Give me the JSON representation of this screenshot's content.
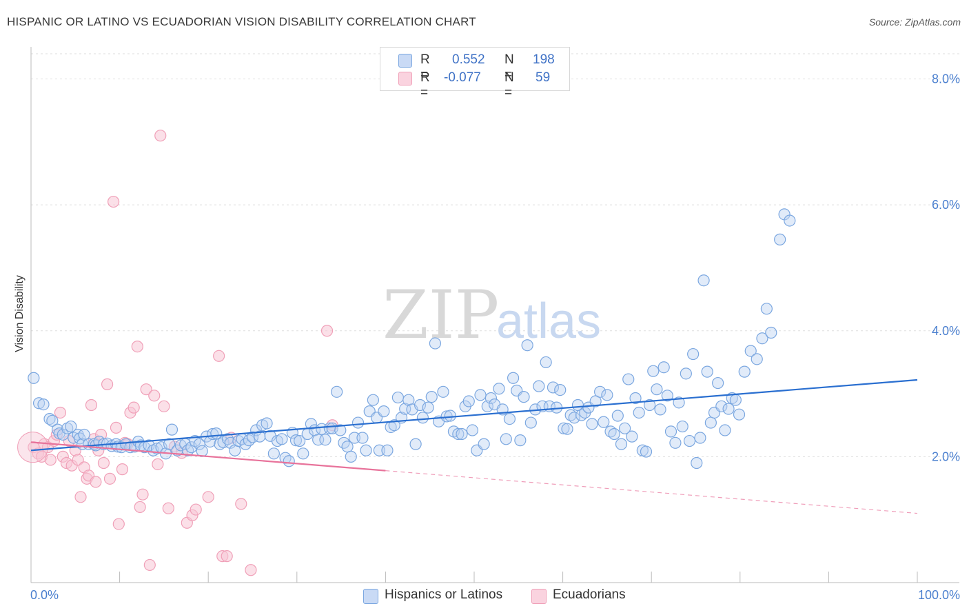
{
  "title": "HISPANIC OR LATINO VS ECUADORIAN VISION DISABILITY CORRELATION CHART",
  "source": "Source: ZipAtlas.com",
  "watermark": "ZIPatlas",
  "legend": {
    "rows": [
      {
        "r_label": "R =",
        "r_value": "0.552",
        "n_label": "N =",
        "n_value": "198",
        "color": "#7ba7e0"
      },
      {
        "r_label": "R =",
        "r_value": "-0.077",
        "n_label": "N =",
        "n_value": "59",
        "color": "#f0a0b8"
      }
    ]
  },
  "bottom_legend": [
    "Hispanics or Latinos",
    "Ecuadorians"
  ],
  "chart_data": {
    "type": "scatter",
    "title": "HISPANIC OR LATINO VS ECUADORIAN VISION DISABILITY CORRELATION CHART",
    "xlabel": "",
    "ylabel": "Vision Disability",
    "xlim": [
      0,
      100
    ],
    "ylim": [
      0,
      8.4
    ],
    "x_tick_labels": [
      "0.0%",
      "100.0%"
    ],
    "y_ticks": [
      2,
      4,
      6,
      8
    ],
    "y_tick_labels": [
      "2.0%",
      "4.0%",
      "6.0%",
      "8.0%"
    ],
    "grid": true,
    "legend_position": "top-center",
    "series": [
      {
        "name": "Hispanics or Latinos",
        "color": "#7ba7e0",
        "line_color": "#2a6fd0",
        "trend": {
          "x": [
            0,
            100
          ],
          "y": [
            2.1,
            3.22
          ]
        },
        "points": [
          [
            0.3,
            3.25
          ],
          [
            0.9,
            2.85
          ],
          [
            1.4,
            2.83
          ],
          [
            2.1,
            2.6
          ],
          [
            2.4,
            2.57
          ],
          [
            3.0,
            2.43
          ],
          [
            3.2,
            2.37
          ],
          [
            3.6,
            2.35
          ],
          [
            4.1,
            2.45
          ],
          [
            4.5,
            2.48
          ],
          [
            4.8,
            2.3
          ],
          [
            5.3,
            2.35
          ],
          [
            5.5,
            2.29
          ],
          [
            5.8,
            2.2
          ],
          [
            6.0,
            2.35
          ],
          [
            6.5,
            2.2
          ],
          [
            7.1,
            2.2
          ],
          [
            7.3,
            2.18
          ],
          [
            7.7,
            2.24
          ],
          [
            8.2,
            2.2
          ],
          [
            8.6,
            2.21
          ],
          [
            9.1,
            2.17
          ],
          [
            9.6,
            2.2
          ],
          [
            9.8,
            2.16
          ],
          [
            10.2,
            2.15
          ],
          [
            10.7,
            2.2
          ],
          [
            11.2,
            2.15
          ],
          [
            11.7,
            2.16
          ],
          [
            12.1,
            2.24
          ],
          [
            12.4,
            2.18
          ],
          [
            12.8,
            2.15
          ],
          [
            13.3,
            2.18
          ],
          [
            13.8,
            2.1
          ],
          [
            14.2,
            2.13
          ],
          [
            14.7,
            2.15
          ],
          [
            15.2,
            2.05
          ],
          [
            15.6,
            2.2
          ],
          [
            15.9,
            2.43
          ],
          [
            16.5,
            2.1
          ],
          [
            16.9,
            2.18
          ],
          [
            17.4,
            2.2
          ],
          [
            17.7,
            2.1
          ],
          [
            18.1,
            2.15
          ],
          [
            18.5,
            2.25
          ],
          [
            19.0,
            2.2
          ],
          [
            19.3,
            2.09
          ],
          [
            19.8,
            2.32
          ],
          [
            20.2,
            2.24
          ],
          [
            20.5,
            2.36
          ],
          [
            20.9,
            2.37
          ],
          [
            21.3,
            2.2
          ],
          [
            21.7,
            2.23
          ],
          [
            22.2,
            2.28
          ],
          [
            22.5,
            2.22
          ],
          [
            23.0,
            2.1
          ],
          [
            23.4,
            2.25
          ],
          [
            23.8,
            2.28
          ],
          [
            24.2,
            2.2
          ],
          [
            24.6,
            2.26
          ],
          [
            25.0,
            2.31
          ],
          [
            25.4,
            2.42
          ],
          [
            25.8,
            2.32
          ],
          [
            26.1,
            2.5
          ],
          [
            26.6,
            2.53
          ],
          [
            27.0,
            2.33
          ],
          [
            27.4,
            2.05
          ],
          [
            27.8,
            2.25
          ],
          [
            28.3,
            2.28
          ],
          [
            28.7,
            1.98
          ],
          [
            29.1,
            1.93
          ],
          [
            29.5,
            2.38
          ],
          [
            29.9,
            2.26
          ],
          [
            30.3,
            2.25
          ],
          [
            30.7,
            2.05
          ],
          [
            31.2,
            2.36
          ],
          [
            31.6,
            2.52
          ],
          [
            32.0,
            2.42
          ],
          [
            32.4,
            2.27
          ],
          [
            32.8,
            2.44
          ],
          [
            33.2,
            2.27
          ],
          [
            33.7,
            2.45
          ],
          [
            34.0,
            2.45
          ],
          [
            34.5,
            3.03
          ],
          [
            34.9,
            2.42
          ],
          [
            35.3,
            2.22
          ],
          [
            35.7,
            2.16
          ],
          [
            36.1,
            2.0
          ],
          [
            36.5,
            2.3
          ],
          [
            36.9,
            2.54
          ],
          [
            37.4,
            2.3
          ],
          [
            37.8,
            2.1
          ],
          [
            38.2,
            2.72
          ],
          [
            38.6,
            2.9
          ],
          [
            39.0,
            2.62
          ],
          [
            39.3,
            2.1
          ],
          [
            39.8,
            2.72
          ],
          [
            40.2,
            2.1
          ],
          [
            40.6,
            2.47
          ],
          [
            41.0,
            2.5
          ],
          [
            41.4,
            2.94
          ],
          [
            41.8,
            2.62
          ],
          [
            42.2,
            2.76
          ],
          [
            42.6,
            2.9
          ],
          [
            43.0,
            2.75
          ],
          [
            43.4,
            2.2
          ],
          [
            43.9,
            2.82
          ],
          [
            44.2,
            2.62
          ],
          [
            44.8,
            2.78
          ],
          [
            45.2,
            2.95
          ],
          [
            45.6,
            3.8
          ],
          [
            46.0,
            2.56
          ],
          [
            46.5,
            3.03
          ],
          [
            46.9,
            2.64
          ],
          [
            47.3,
            2.65
          ],
          [
            47.7,
            2.4
          ],
          [
            48.2,
            2.36
          ],
          [
            48.6,
            2.36
          ],
          [
            49.0,
            2.8
          ],
          [
            49.4,
            2.88
          ],
          [
            49.8,
            2.42
          ],
          [
            50.3,
            2.1
          ],
          [
            50.7,
            2.98
          ],
          [
            51.1,
            2.2
          ],
          [
            51.5,
            2.8
          ],
          [
            51.9,
            2.93
          ],
          [
            52.3,
            2.83
          ],
          [
            52.8,
            3.08
          ],
          [
            53.2,
            2.75
          ],
          [
            53.6,
            2.28
          ],
          [
            54.0,
            2.6
          ],
          [
            54.4,
            3.25
          ],
          [
            54.8,
            3.05
          ],
          [
            55.2,
            2.26
          ],
          [
            55.6,
            2.95
          ],
          [
            56.0,
            3.77
          ],
          [
            56.4,
            2.54
          ],
          [
            56.9,
            2.75
          ],
          [
            57.3,
            3.12
          ],
          [
            57.7,
            2.8
          ],
          [
            58.1,
            3.5
          ],
          [
            58.5,
            2.8
          ],
          [
            58.9,
            3.1
          ],
          [
            59.3,
            2.78
          ],
          [
            59.7,
            3.06
          ],
          [
            60.1,
            2.45
          ],
          [
            60.5,
            2.44
          ],
          [
            60.9,
            2.66
          ],
          [
            61.3,
            2.62
          ],
          [
            61.7,
            2.82
          ],
          [
            62.1,
            2.66
          ],
          [
            62.5,
            2.7
          ],
          [
            62.9,
            2.78
          ],
          [
            63.3,
            2.52
          ],
          [
            63.7,
            2.88
          ],
          [
            64.2,
            3.03
          ],
          [
            64.6,
            2.55
          ],
          [
            65.0,
            2.98
          ],
          [
            65.4,
            2.4
          ],
          [
            65.8,
            2.36
          ],
          [
            66.2,
            2.65
          ],
          [
            66.6,
            2.2
          ],
          [
            67.0,
            2.45
          ],
          [
            67.4,
            3.23
          ],
          [
            67.8,
            2.32
          ],
          [
            68.2,
            2.93
          ],
          [
            68.6,
            2.7
          ],
          [
            69.0,
            2.1
          ],
          [
            69.4,
            2.08
          ],
          [
            69.8,
            2.82
          ],
          [
            70.2,
            3.36
          ],
          [
            70.6,
            3.07
          ],
          [
            71.0,
            2.75
          ],
          [
            71.4,
            3.42
          ],
          [
            71.8,
            2.97
          ],
          [
            72.2,
            2.4
          ],
          [
            72.7,
            2.22
          ],
          [
            73.1,
            2.86
          ],
          [
            73.5,
            2.48
          ],
          [
            73.9,
            3.32
          ],
          [
            74.3,
            2.25
          ],
          [
            74.7,
            3.63
          ],
          [
            75.1,
            1.9
          ],
          [
            75.5,
            2.3
          ],
          [
            75.9,
            4.8
          ],
          [
            76.3,
            3.35
          ],
          [
            76.7,
            2.54
          ],
          [
            77.1,
            2.7
          ],
          [
            77.5,
            3.17
          ],
          [
            77.9,
            2.8
          ],
          [
            78.3,
            2.42
          ],
          [
            78.7,
            2.76
          ],
          [
            79.1,
            2.93
          ],
          [
            79.5,
            2.9
          ],
          [
            79.9,
            2.67
          ],
          [
            80.5,
            3.35
          ],
          [
            81.2,
            3.68
          ],
          [
            81.9,
            3.55
          ],
          [
            82.5,
            3.88
          ],
          [
            83.0,
            4.35
          ],
          [
            83.5,
            3.97
          ],
          [
            84.5,
            5.45
          ],
          [
            85.0,
            5.85
          ],
          [
            85.6,
            5.75
          ]
        ]
      },
      {
        "name": "Ecuadorians",
        "color": "#f0a0b8",
        "line_color": "#e8739b",
        "trend": {
          "x": [
            0,
            100
          ],
          "y": [
            2.23,
            1.1
          ]
        },
        "trend_solid_until_x": 40,
        "points": [
          [
            0.3,
            2.15
          ],
          [
            0.8,
            2.05
          ],
          [
            1.2,
            2.0
          ],
          [
            1.5,
            2.2
          ],
          [
            1.9,
            2.15
          ],
          [
            2.2,
            1.95
          ],
          [
            2.6,
            2.25
          ],
          [
            2.9,
            2.35
          ],
          [
            3.3,
            2.7
          ],
          [
            3.6,
            2.0
          ],
          [
            4.0,
            1.9
          ],
          [
            4.3,
            2.25
          ],
          [
            4.6,
            1.86
          ],
          [
            5.0,
            2.1
          ],
          [
            5.3,
            1.95
          ],
          [
            5.6,
            1.36
          ],
          [
            6.0,
            1.83
          ],
          [
            6.3,
            1.65
          ],
          [
            6.5,
            1.7
          ],
          [
            6.8,
            2.82
          ],
          [
            7.1,
            2.28
          ],
          [
            7.3,
            1.6
          ],
          [
            7.6,
            2.1
          ],
          [
            7.9,
            2.35
          ],
          [
            8.2,
            1.9
          ],
          [
            8.6,
            3.15
          ],
          [
            8.9,
            1.65
          ],
          [
            9.3,
            6.05
          ],
          [
            9.6,
            2.46
          ],
          [
            9.9,
            0.93
          ],
          [
            10.3,
            1.8
          ],
          [
            10.6,
            2.22
          ],
          [
            10.9,
            2.2
          ],
          [
            11.2,
            2.7
          ],
          [
            11.6,
            2.78
          ],
          [
            12.0,
            3.75
          ],
          [
            12.3,
            1.2
          ],
          [
            12.6,
            1.4
          ],
          [
            13.0,
            3.07
          ],
          [
            13.4,
            0.28
          ],
          [
            13.9,
            2.97
          ],
          [
            14.3,
            1.88
          ],
          [
            14.6,
            7.1
          ],
          [
            15.0,
            2.8
          ],
          [
            15.5,
            1.18
          ],
          [
            16.2,
            2.16
          ],
          [
            17.0,
            2.06
          ],
          [
            17.6,
            0.95
          ],
          [
            18.2,
            1.07
          ],
          [
            18.6,
            1.16
          ],
          [
            20.0,
            1.36
          ],
          [
            21.2,
            3.6
          ],
          [
            21.6,
            0.42
          ],
          [
            22.1,
            0.42
          ],
          [
            22.6,
            2.3
          ],
          [
            23.7,
            1.25
          ],
          [
            24.8,
            0.2
          ],
          [
            33.4,
            4.0
          ],
          [
            34.0,
            2.5
          ]
        ]
      }
    ]
  }
}
